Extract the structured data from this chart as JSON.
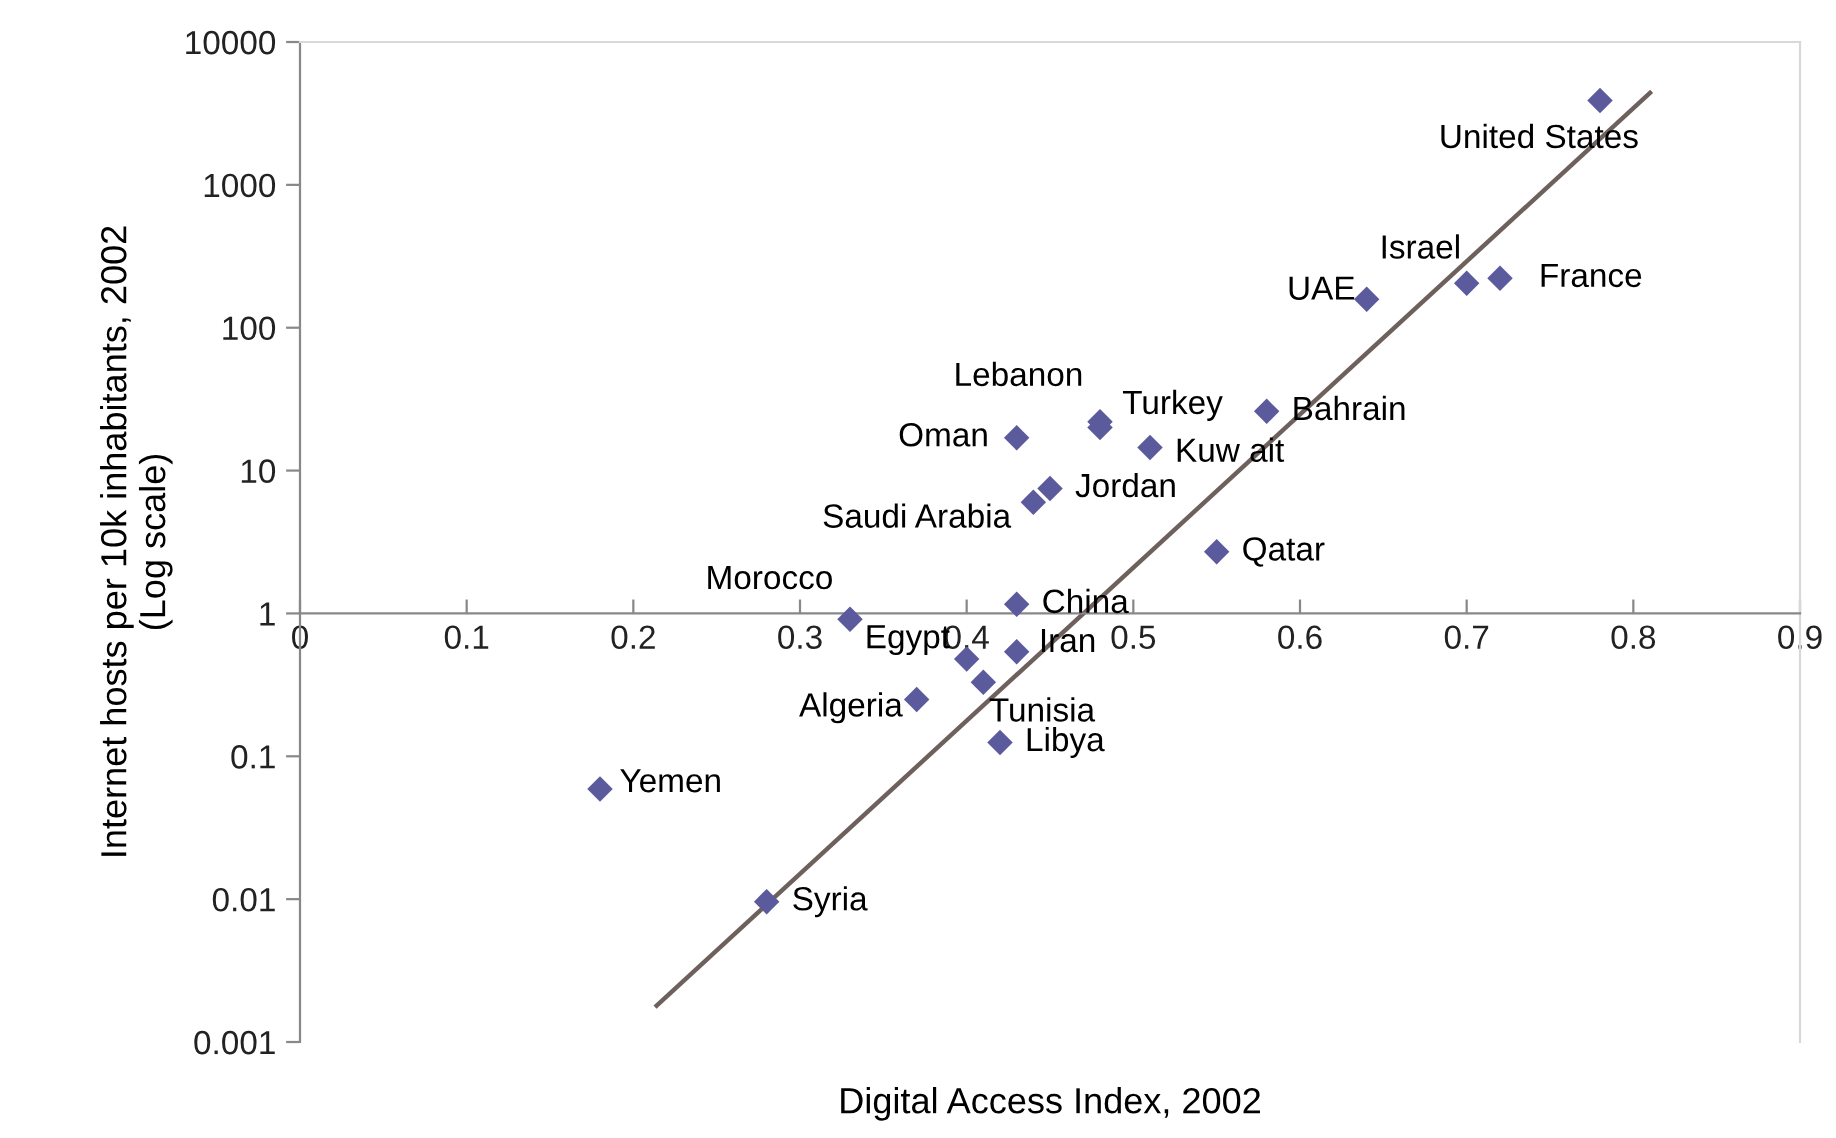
{
  "chart_data": {
    "type": "scatter",
    "xlabel": "Digital Access Index, 2002",
    "ylabel": "Internet hosts per 10k inhabitants, 2002\n(Log scale)",
    "log": "y",
    "xlim": [
      0,
      0.9
    ],
    "xticks": [
      0,
      0.1,
      0.2,
      0.3,
      0.4,
      0.5,
      0.6,
      0.7,
      0.8,
      0.9
    ],
    "ylim": [
      0.001,
      10000
    ],
    "yticks": [
      0.001,
      0.01,
      0.1,
      1,
      10,
      100,
      1000,
      10000
    ],
    "grid": false,
    "series": [
      {
        "color": "#5b5a9c",
        "marker": "diamond",
        "x": [
          0.78,
          0.7,
          0.72,
          0.64,
          0.48,
          0.48,
          0.58,
          0.43,
          0.51,
          0.45,
          0.44,
          0.55,
          0.43,
          0.33,
          0.4,
          0.43,
          0.41,
          0.37,
          0.42,
          0.18,
          0.28
        ],
        "values": [
          3900,
          205,
          222,
          158,
          22,
          20,
          26,
          17,
          14.5,
          7.5,
          6.0,
          2.7,
          1.16,
          0.91,
          0.48,
          0.54,
          0.33,
          0.25,
          0.125,
          0.059,
          0.0096
        ]
      },
      {
        "type": "line",
        "color": "#6e605c",
        "marker": "none",
        "line_style": "solid",
        "x": [
          0.214,
          0.81
        ],
        "values": [
          0.0018,
          4400
        ]
      }
    ],
    "annotations": [
      {
        "text": "United States",
        "x": 0.78,
        "y": 3900
      },
      {
        "text": "Israel",
        "x": 0.7,
        "y": 205
      },
      {
        "text": "France",
        "x": 0.72,
        "y": 222
      },
      {
        "text": "UAE",
        "x": 0.64,
        "y": 158
      },
      {
        "text": "Lebanon",
        "x": 0.48,
        "y": 22
      },
      {
        "text": "Turkey",
        "x": 0.48,
        "y": 20
      },
      {
        "text": "Bahrain",
        "x": 0.58,
        "y": 26
      },
      {
        "text": "Oman",
        "x": 0.43,
        "y": 17
      },
      {
        "text": "Kuw ait",
        "x": 0.51,
        "y": 14.5
      },
      {
        "text": "Jordan",
        "x": 0.45,
        "y": 7.5
      },
      {
        "text": "Saudi Arabia",
        "x": 0.44,
        "y": 6.0
      },
      {
        "text": "Qatar",
        "x": 0.55,
        "y": 2.7
      },
      {
        "text": "China",
        "x": 0.43,
        "y": 1.16
      },
      {
        "text": "Morocco",
        "x": 0.33,
        "y": 0.91
      },
      {
        "text": "Egypt",
        "x": 0.4,
        "y": 0.48
      },
      {
        "text": "Iran",
        "x": 0.43,
        "y": 0.54
      },
      {
        "text": "Tunisia",
        "x": 0.41,
        "y": 0.33
      },
      {
        "text": "Algeria",
        "x": 0.37,
        "y": 0.25
      },
      {
        "text": "Libya",
        "x": 0.42,
        "y": 0.125
      },
      {
        "text": "Yemen",
        "x": 0.18,
        "y": 0.059
      },
      {
        "text": "Syria",
        "x": 0.28,
        "y": 0.0096
      }
    ]
  }
}
